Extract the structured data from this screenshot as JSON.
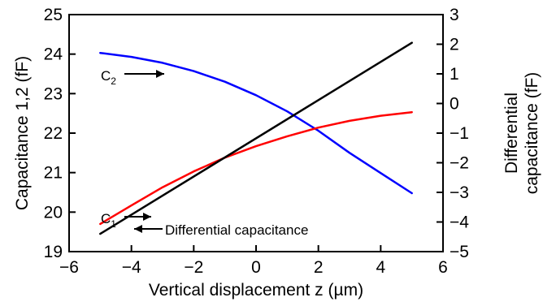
{
  "chart_data": {
    "type": "line",
    "xlabel": "Vertical displacement z (µm)",
    "ylabel_left": "Capacitance 1,2 (fF)",
    "ylabel_right_line1": "Differential",
    "ylabel_right_line2": "capacitance (fF)",
    "xlim": [
      -6,
      6
    ],
    "ylim_left": [
      19,
      25
    ],
    "ylim_right": [
      -5,
      3
    ],
    "x_ticks": [
      -6,
      -4,
      -2,
      0,
      2,
      4,
      6
    ],
    "x_tick_labels": [
      "−6",
      "−4",
      "−2",
      "0",
      "2",
      "4",
      "6"
    ],
    "y_left_ticks": [
      19,
      20,
      21,
      22,
      23,
      24,
      25
    ],
    "y_left_tick_labels": [
      "19",
      "20",
      "21",
      "22",
      "23",
      "24",
      "25"
    ],
    "y_right_ticks": [
      -5,
      -4,
      -3,
      -2,
      -1,
      0,
      1,
      2,
      3
    ],
    "y_right_tick_labels": [
      "−5",
      "−4",
      "−3",
      "−2",
      "−1",
      "0",
      "1",
      "2",
      "3"
    ],
    "grid": false,
    "series": [
      {
        "id": "c2",
        "label_main": "C",
        "label_sub": "2",
        "color": "#0000ff",
        "axis": "left",
        "x": [
          -5,
          -4,
          -3,
          -2,
          -1,
          0,
          1,
          2,
          3,
          4,
          5
        ],
        "y": [
          24.03,
          23.93,
          23.78,
          23.57,
          23.3,
          22.96,
          22.55,
          22.06,
          21.5,
          20.99,
          20.48
        ]
      },
      {
        "id": "c1",
        "label_main": "C",
        "label_sub": "1",
        "color": "#ff0000",
        "axis": "left",
        "x": [
          -5,
          -4,
          -3,
          -2,
          -1,
          0,
          1,
          2,
          3,
          4,
          5
        ],
        "y": [
          19.7,
          20.17,
          20.63,
          21.03,
          21.38,
          21.67,
          21.92,
          22.14,
          22.31,
          22.44,
          22.53
        ]
      },
      {
        "id": "diff",
        "label": "Differential capacitance",
        "color": "#000000",
        "axis": "right",
        "x": [
          -5,
          5
        ],
        "y": [
          -4.4,
          2.05
        ]
      }
    ]
  }
}
